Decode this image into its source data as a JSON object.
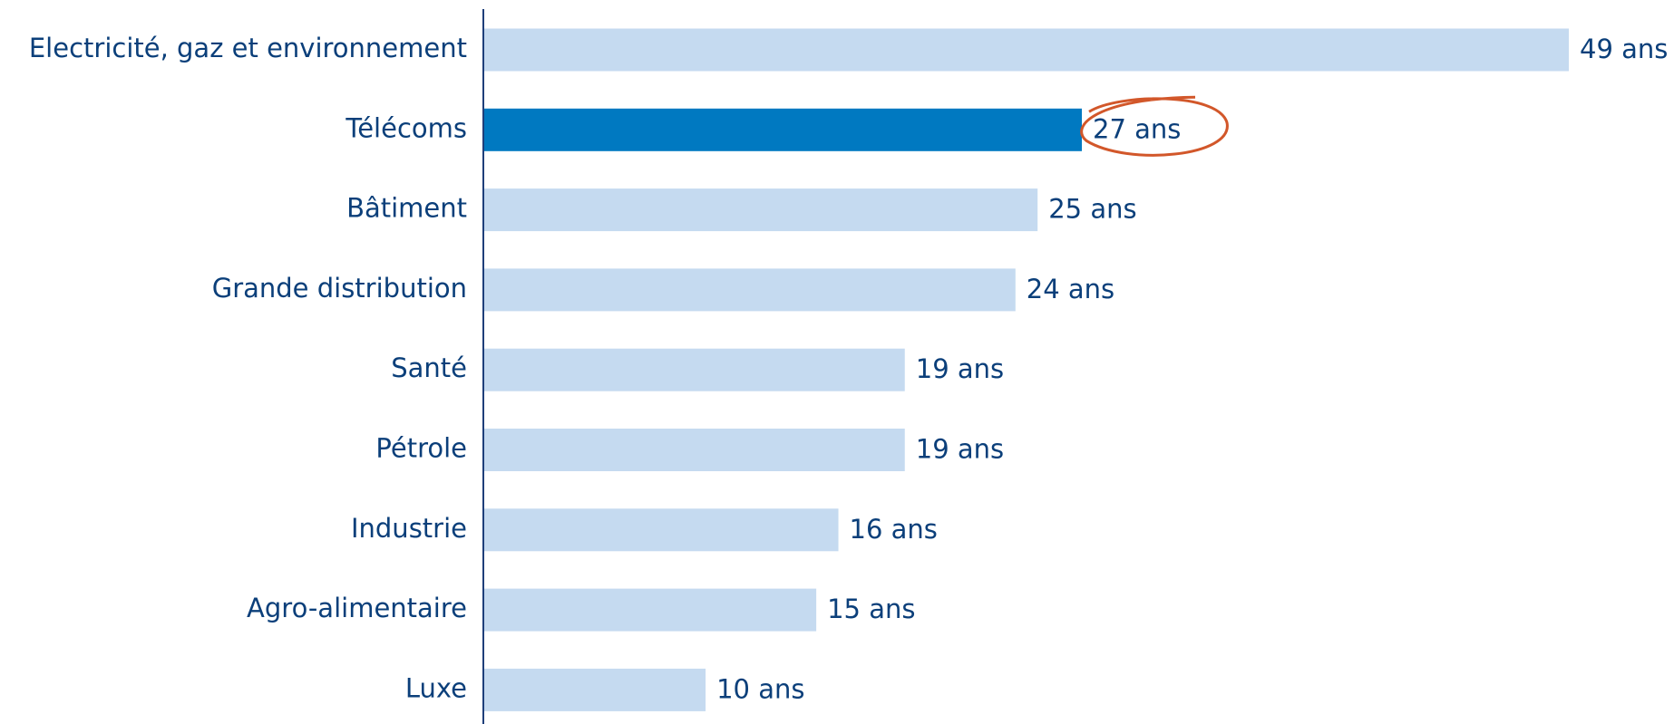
{
  "chart_data": {
    "type": "bar",
    "orientation": "horizontal",
    "categories": [
      "Electricité, gaz et environnement",
      "Télécoms",
      "Bâtiment",
      "Grande distribution",
      "Santé",
      "Pétrole",
      "Industrie",
      "Agro-alimentaire",
      "Luxe"
    ],
    "values": [
      49,
      27,
      25,
      24,
      19,
      19,
      16,
      15,
      10
    ],
    "value_labels": [
      "49 ans",
      "27 ans",
      "25 ans",
      "24 ans",
      "19 ans",
      "19 ans",
      "16 ans",
      "15 ans",
      "10 ans"
    ],
    "colors": [
      "#c5daf0",
      "#0079c1",
      "#c5daf0",
      "#c5daf0",
      "#c5daf0",
      "#c5daf0",
      "#c5daf0",
      "#c5daf0",
      "#c5daf0"
    ],
    "value_label_backgrounds": [
      null,
      "#ffffff",
      null,
      null,
      null,
      null,
      null,
      null,
      null
    ]
  }
}
